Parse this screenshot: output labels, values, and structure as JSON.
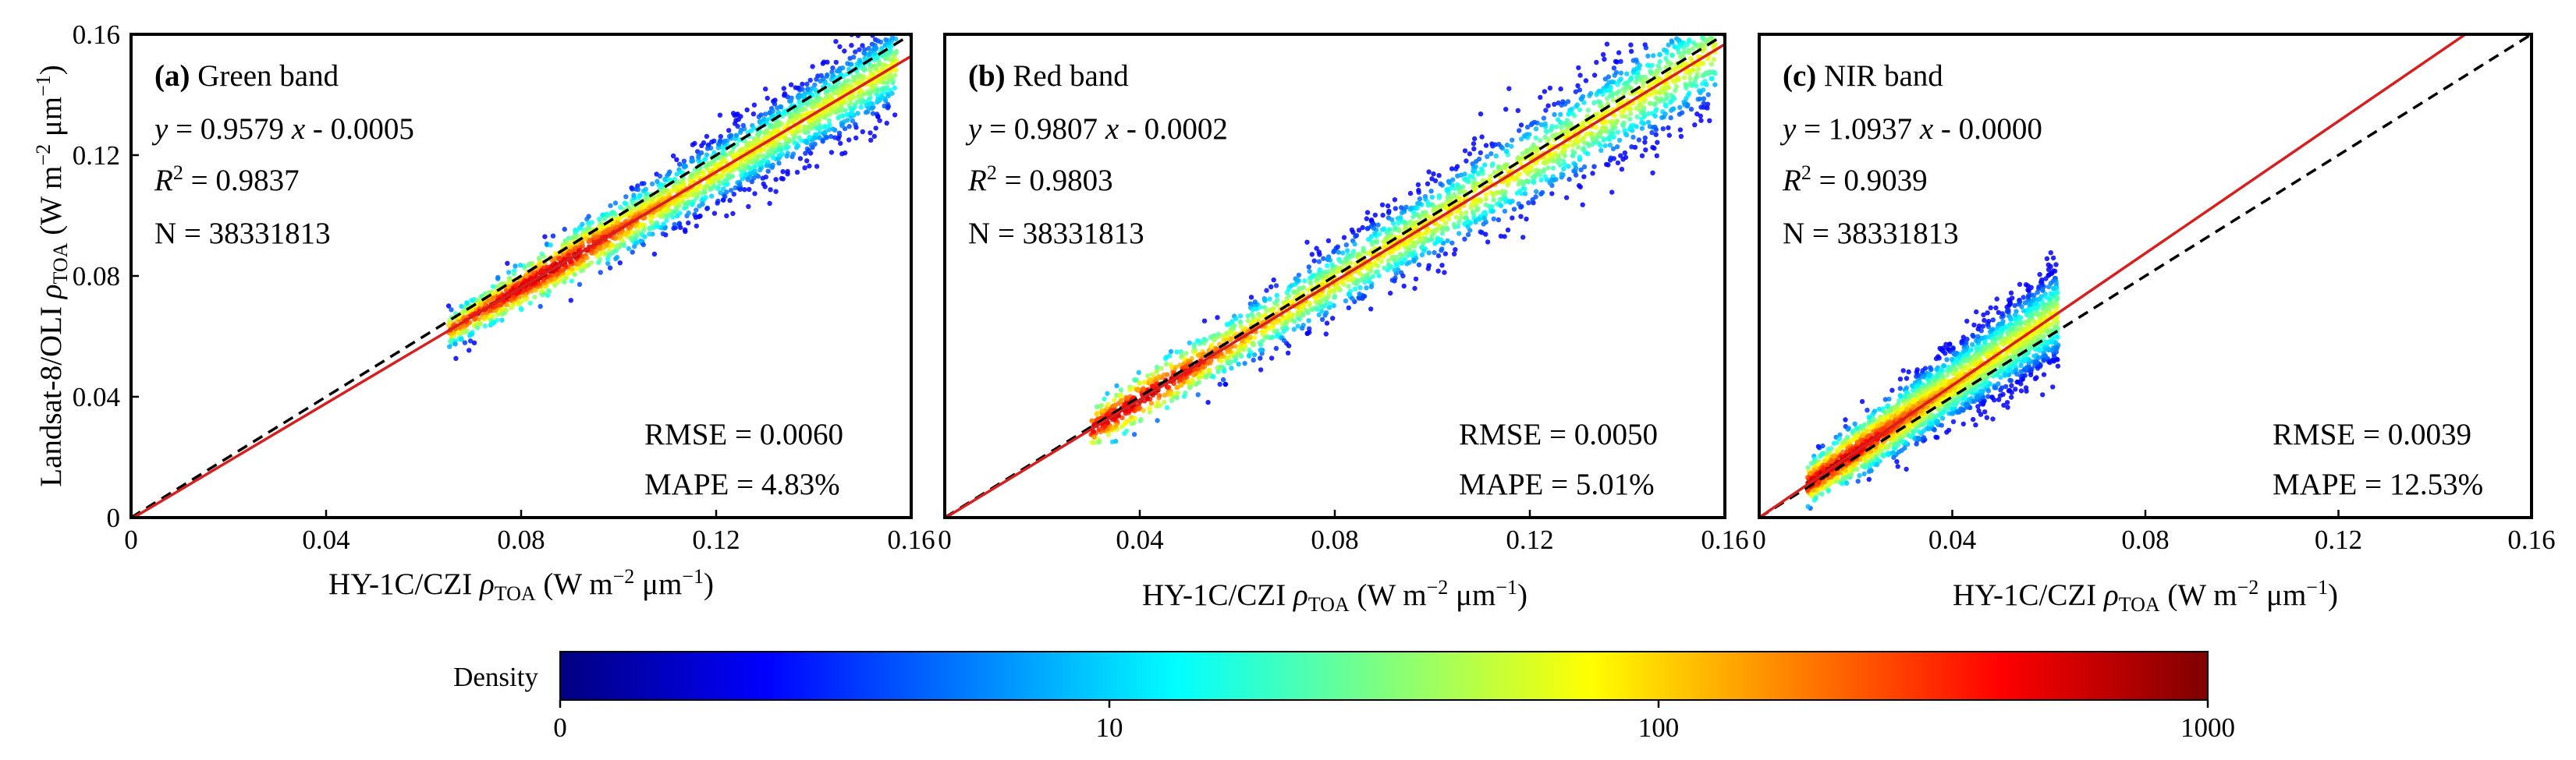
{
  "chart_data": [
    {
      "type": "scatter",
      "panel_letter": "(a)",
      "title": "Green band",
      "equation": {
        "y": "y",
        "eq": " = 0.9579 ",
        "x": "x",
        "rest": " - 0.0005"
      },
      "fit": {
        "slope": 0.9579,
        "intercept": -0.0005
      },
      "r2": {
        "r": "R",
        "sup": "2",
        "val": " = 0.9837"
      },
      "n": "N  = 38331813",
      "rmse": "RMSE = 0.0060",
      "mape": "MAPE = 4.83%",
      "xlim": [
        0,
        0.16
      ],
      "ylim": [
        0,
        0.16
      ],
      "xticks": [
        "0",
        "0.04",
        "0.08",
        "0.12",
        "0.16"
      ],
      "yticks": [
        "0",
        "0.04",
        "0.08",
        "0.12",
        "0.16"
      ],
      "cloud": {
        "x_range": [
          0.065,
          0.157
        ],
        "spread": 0.006,
        "peak_x": 0.085,
        "slope": 0.9579
      }
    },
    {
      "type": "scatter",
      "panel_letter": "(b)",
      "title": "Red band",
      "equation": {
        "y": "y",
        "eq": " = 0.9807 ",
        "x": "x",
        "rest": " - 0.0002"
      },
      "fit": {
        "slope": 0.9807,
        "intercept": -0.0002
      },
      "r2": {
        "r": "R",
        "sup": "2",
        "val": " = 0.9803"
      },
      "n": "N  = 38331813",
      "rmse": "RMSE = 0.0050",
      "mape": "MAPE = 5.01%",
      "xlim": [
        0,
        0.16
      ],
      "ylim": [
        0,
        0.16
      ],
      "xticks": [
        "0",
        "0.04",
        "0.08",
        "0.12",
        "0.16"
      ],
      "yticks": [],
      "cloud": {
        "x_range": [
          0.03,
          0.158
        ],
        "spread": 0.0075,
        "peak_x": 0.038,
        "slope": 0.9807
      }
    },
    {
      "type": "scatter",
      "panel_letter": "(c)",
      "title": "NIR band",
      "equation": {
        "y": "y",
        "eq": " = 1.0937 ",
        "x": "x",
        "rest": " - 0.0000"
      },
      "fit": {
        "slope": 1.0937,
        "intercept": 0.0
      },
      "r2": {
        "r": "R",
        "sup": "2",
        "val": " = 0.9039"
      },
      "n": "N  = 38331813",
      "rmse": "RMSE = 0.0039",
      "mape": "MAPE = 12.53%",
      "xlim": [
        0,
        0.16
      ],
      "ylim": [
        0,
        0.16
      ],
      "xticks": [
        "0",
        "0.04",
        "0.08",
        "0.12",
        "0.16"
      ],
      "yticks": [],
      "cloud": {
        "x_range": [
          0.01,
          0.062
        ],
        "spread": 0.0065,
        "peak_x": 0.014,
        "slope": 1.0937
      }
    }
  ],
  "ylabel": {
    "main": "Landsat-8/OLI ",
    "rho": "ρ",
    "sub": "TOA",
    "unit1": " (W m",
    "sup1": "−2",
    "unit2": " μm",
    "sup2": "−1",
    "unit3": ")"
  },
  "xlabel": {
    "main": "HY-1C/CZI ",
    "rho": "ρ",
    "sub": "TOA",
    "unit1": " (W m",
    "sup1": "−2",
    "unit2": " μm",
    "sup2": "−1",
    "unit3": ")"
  },
  "colorbar": {
    "label": "Density",
    "ticks": [
      "0",
      "10",
      "100",
      "1000"
    ],
    "colors": [
      "#00007f",
      "#0000ff",
      "#007fff",
      "#00ffff",
      "#7fff7f",
      "#ffff00",
      "#ff7f00",
      "#ff0000",
      "#7f0000"
    ]
  },
  "line_colors": {
    "fit": "#d62020",
    "one_to_one": "#000000"
  }
}
